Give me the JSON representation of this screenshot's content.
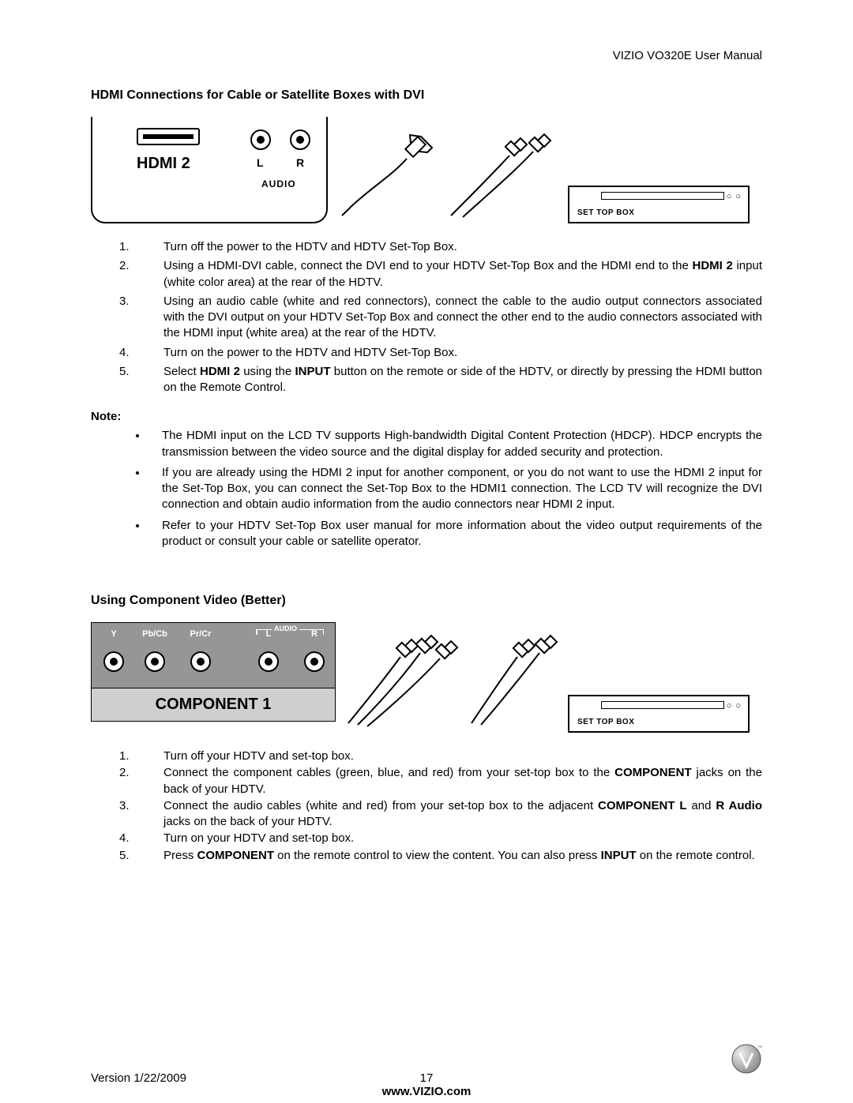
{
  "header": {
    "right": "VIZIO VO320E User Manual"
  },
  "section1": {
    "title": "HDMI Connections for Cable or Satellite Boxes with DVI",
    "panel": {
      "hdmi_label": "HDMI 2",
      "l": "L",
      "r": "R",
      "audio": "AUDIO"
    },
    "stb": {
      "label": "SET TOP BOX"
    },
    "steps": [
      {
        "pre": "Turn off the power to the HDTV and HDTV Set-Top Box."
      },
      {
        "pre": "Using a HDMI-DVI cable, connect the DVI end to your HDTV Set-Top Box and the HDMI end to the ",
        "b1": "HDMI 2",
        "post1": " input (white color area) at the rear of the HDTV."
      },
      {
        "pre": "Using an audio cable (white and red connectors), connect the cable to the audio output connectors associated with the DVI output on your HDTV Set-Top Box and connect the other end to the audio connectors associated with the HDMI input (white area) at the rear of the HDTV."
      },
      {
        "pre": "Turn on the power to the HDTV and HDTV Set-Top Box."
      },
      {
        "pre": "Select ",
        "b1": "HDMI 2",
        "post1": " using the ",
        "b2": "INPUT",
        "post2": " button on the remote or side of the HDTV, or directly by pressing the HDMI button on the Remote Control."
      }
    ],
    "note_label": "Note:",
    "notes": [
      "The HDMI input on the LCD TV supports High-bandwidth Digital Content Protection (HDCP). HDCP encrypts the transmission between the video source and the digital display for added security and protection.",
      "If you are already using the HDMI 2 input for another component, or you do not want to use the HDMI 2 input for the Set-Top Box, you can connect the Set-Top Box to the HDMI1 connection. The LCD TV will recognize the DVI connection and obtain audio information from the audio connectors near HDMI 2 input.",
      "Refer to your HDTV Set-Top Box user manual for more information about the video output requirements of the product or consult your cable or satellite operator."
    ]
  },
  "section2": {
    "title": "Using Component Video (Better)",
    "panel": {
      "cols": [
        "Y",
        "Pb/Cb",
        "Pr/Cr",
        "L",
        "R"
      ],
      "audio": "AUDIO",
      "label": "COMPONENT 1"
    },
    "stb": {
      "label": "SET TOP BOX"
    },
    "steps": [
      {
        "pre": "Turn off your HDTV and set-top box."
      },
      {
        "pre": "Connect the component cables (green, blue, and red) from your set-top box to the ",
        "b1": "COMPONENT",
        "post1": " jacks on the back of your HDTV."
      },
      {
        "pre": "Connect the audio cables (white and red) from your set-top box to the adjacent ",
        "b1": "COMPONENT L",
        "post1": " and ",
        "b2": "R Audio",
        "post2": " jacks on the back of your HDTV."
      },
      {
        "pre": "Turn on your HDTV and set-top box."
      },
      {
        "pre": "Press ",
        "b1": "COMPONENT",
        "post1": " on the remote control to view the content. You can also press ",
        "b2": "INPUT",
        "post2": " on the remote control."
      }
    ]
  },
  "footer": {
    "version": "Version 1/22/2009",
    "page": "17",
    "url": "www.VIZIO.com"
  },
  "colors": {
    "comp_top": "#969696",
    "comp_bottom": "#cfcfcf"
  }
}
